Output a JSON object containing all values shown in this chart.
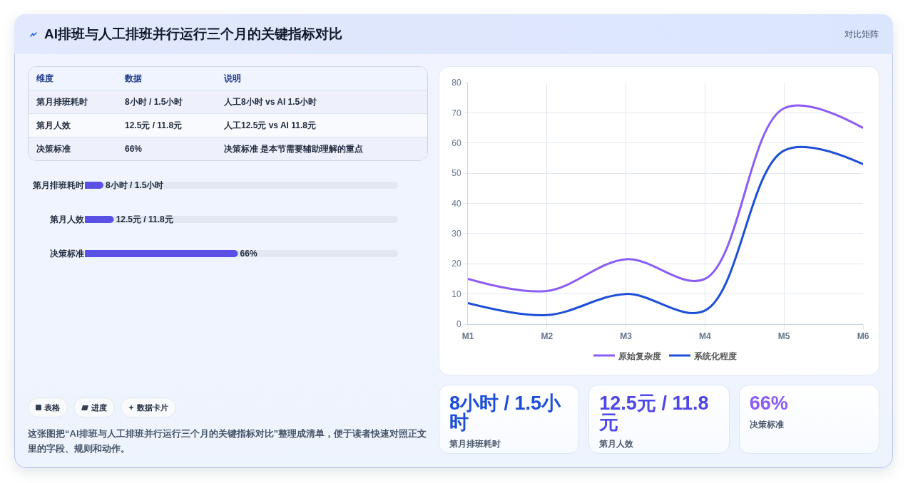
{
  "chart_data": [
    {
      "type": "other",
      "title": "AI排班与人工排班并行运行三个月的关键指标对比",
      "subtitle": "对比矩阵"
    },
    {
      "type": "other",
      "annotations": [
        "维度",
        "数据",
        "说明",
        "第月排班耗时",
        "8小时 / 1.5小时",
        "人工8小时 vs AI 1.5小时",
        "第月人效",
        "12.5元 / 11.8元",
        "人工12.5元 vs AI 11.8元",
        "决策标准",
        "66%",
        "决策标准 是本节需要辅助理解的重点"
      ]
    },
    {
      "type": "line",
      "categories": [
        "M1",
        "M2",
        "M3",
        "M4",
        "M5",
        "M6"
      ],
      "series": [
        {
          "name": "原始复杂度",
          "color": "#8b5cf6",
          "values": [
            15,
            11,
            21.5,
            15,
            71.5,
            65
          ]
        },
        {
          "name": "系统化程度",
          "color": "#1d4ed8",
          "values": [
            7,
            3,
            10,
            4.5,
            57.5,
            53
          ]
        }
      ],
      "ylim": [
        0,
        80
      ],
      "yticks": [
        0,
        10,
        20,
        30,
        40,
        50,
        60,
        70,
        80
      ],
      "grid": true,
      "legend": "bottom"
    },
    {
      "type": "bar",
      "orientation": "horizontal",
      "categories": [
        "第月排班耗时",
        "第月人效",
        "决策标准"
      ],
      "values": [
        8,
        12.5,
        66
      ],
      "value_labels": [
        "8小时 / 1.5小时",
        "12.5元 / 11.8元",
        "66%"
      ],
      "color": "#5b50e6",
      "xlim": [
        0,
        135
      ],
      "tick_labels": "y"
    },
    {
      "type": "other",
      "annotations": [
        "表格",
        "进度",
        "数据卡片",
        "这张图把“AI排班与人工排班并行运行三个月的关键指标对比”整理成清单，便于读者快速对照正文里的字段、规则和动作。"
      ]
    },
    {
      "type": "other",
      "annotations": [
        "8小时 / 1.5小时",
        "第月排班耗时",
        "12.5元 / 11.8元",
        "第月人效",
        "66%",
        "决策标准"
      ]
    }
  ]
}
